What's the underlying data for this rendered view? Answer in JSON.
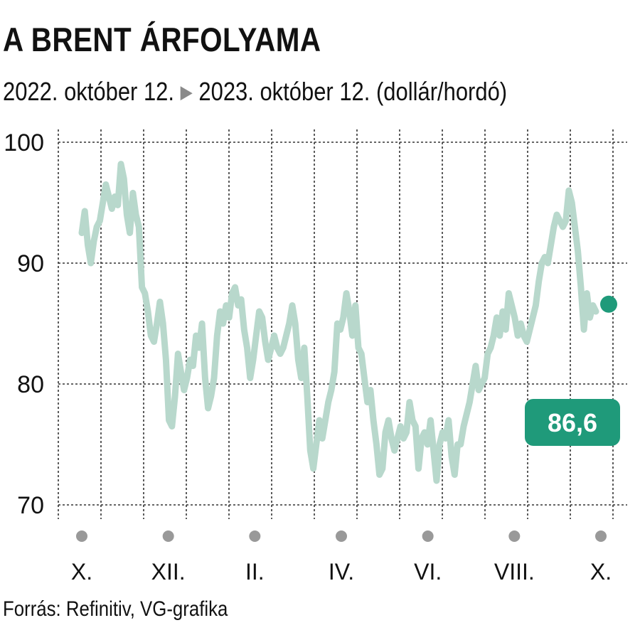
{
  "header": {
    "title": "A BRENT ÁRFOLYAMA",
    "subtitle_start": "2022. október 12.",
    "subtitle_end": "2023. október 12. (dollár/hordó)"
  },
  "footer": {
    "source": "Forrás: Refinitiv, VG-grafika"
  },
  "colors": {
    "line": "#b8d8cc",
    "accent": "#1f9a7a",
    "marker": "#999999",
    "grid": "#333333"
  },
  "chart_data": {
    "type": "line",
    "title": "A BRENT ÁRFOLYAMA",
    "subtitle": "2022. október 12. ▶ 2023. október 12. (dollár/hordó)",
    "ylim": [
      70,
      100
    ],
    "y_ticks": [
      100,
      90,
      80,
      70
    ],
    "x_tick_labels": [
      "X.",
      "XII.",
      "II.",
      "IV.",
      "VI.",
      "VIII.",
      "X."
    ],
    "grid": true,
    "last_value": 86.6,
    "last_value_label": "86,6",
    "series": [
      {
        "values": [
          92.5,
          94.3,
          91.5,
          90.0,
          91.8,
          93.0,
          93.5,
          95.0,
          96.5,
          95.5,
          94.5,
          95.5,
          94.8,
          98.2,
          97.0,
          94.0,
          92.5,
          95.8,
          94.0,
          93.0,
          88.0,
          87.5,
          86.0,
          84.0,
          83.5,
          85.0,
          86.8,
          85.0,
          82.0,
          77.0,
          76.5,
          79.0,
          82.5,
          81.0,
          79.5,
          80.5,
          82.0,
          81.5,
          84.0,
          83.0,
          85.0,
          80.5,
          78.0,
          79.0,
          80.5,
          84.0,
          86.0,
          85.0,
          86.5,
          85.5,
          87.5,
          88.0,
          86.5,
          87.0,
          84.5,
          83.0,
          80.5,
          82.0,
          84.0,
          86.0,
          85.5,
          83.5,
          82.0,
          83.0,
          84.0,
          83.0,
          82.5,
          83.0,
          84.0,
          85.0,
          86.5,
          85.0,
          82.0,
          80.5,
          83.0,
          79.0,
          74.5,
          73.0,
          75.0,
          77.0,
          75.5,
          77.0,
          78.5,
          79.5,
          81.0,
          85.0,
          84.5,
          85.5,
          87.5,
          86.0,
          84.0,
          86.5,
          83.0,
          82.5,
          80.5,
          78.5,
          79.5,
          77.0,
          75.0,
          72.5,
          73.0,
          76.0,
          77.0,
          75.5,
          74.5,
          75.5,
          76.5,
          75.5,
          76.0,
          78.5,
          77.0,
          76.5,
          73.0,
          75.5,
          76.0,
          75.0,
          77.0,
          74.5,
          72.0,
          75.0,
          76.0,
          75.5,
          77.0,
          74.0,
          72.5,
          75.0,
          75.0,
          76.5,
          77.5,
          78.5,
          80.0,
          81.5,
          79.5,
          80.0,
          80.5,
          82.5,
          83.0,
          84.0,
          85.5,
          84.0,
          86.0,
          84.5,
          87.5,
          86.5,
          85.5,
          84.0,
          85.0,
          84.0,
          83.5,
          84.5,
          85.5,
          86.5,
          88.5,
          90.0,
          90.5,
          90.0,
          91.5,
          93.0,
          94.0,
          93.5,
          93.0,
          93.5,
          96.0,
          95.0,
          93.0,
          91.0,
          88.0,
          84.5,
          87.5,
          85.5,
          86.5,
          86.0
        ]
      }
    ]
  }
}
